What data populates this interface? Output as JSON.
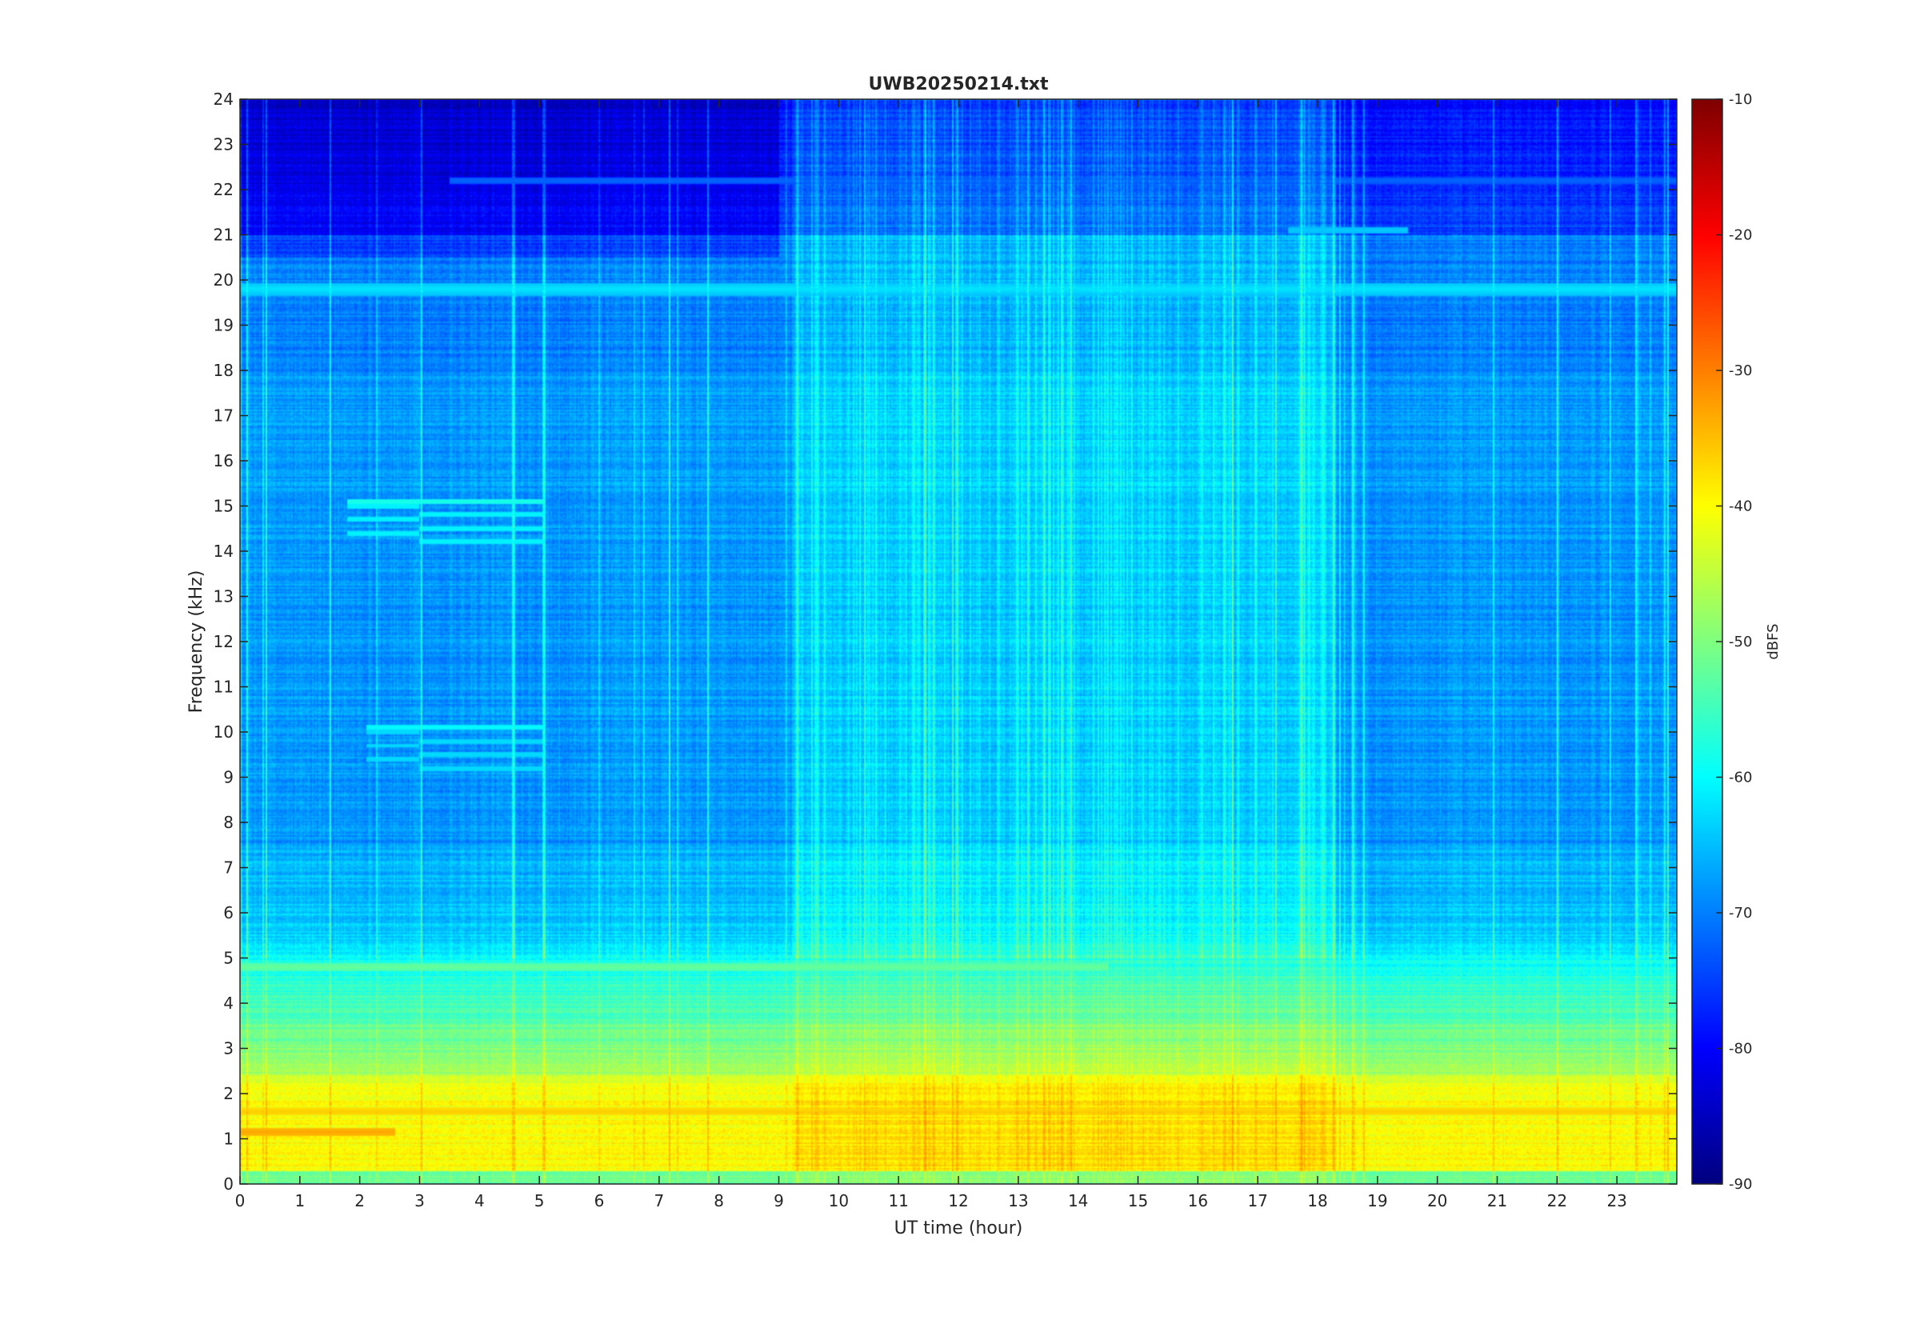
{
  "chart_data": {
    "type": "heatmap",
    "title": "UWB20250214.txt",
    "xlabel": "UT time (hour)",
    "ylabel": "Frequency (kHz)",
    "xlim": [
      0,
      24
    ],
    "ylim": [
      0,
      24
    ],
    "x_ticks": [
      "0",
      "1",
      "2",
      "3",
      "4",
      "5",
      "6",
      "7",
      "8",
      "9",
      "10",
      "11",
      "12",
      "13",
      "14",
      "15",
      "16",
      "17",
      "18",
      "19",
      "20",
      "21",
      "22",
      "23"
    ],
    "y_ticks": [
      "0",
      "1",
      "2",
      "3",
      "4",
      "5",
      "6",
      "7",
      "8",
      "9",
      "10",
      "11",
      "12",
      "13",
      "14",
      "15",
      "16",
      "17",
      "18",
      "19",
      "20",
      "21",
      "22",
      "23",
      "24"
    ],
    "colormap": "jet",
    "colorbar": {
      "label": "dBFS",
      "range": [
        -90,
        -10
      ],
      "ticks": [
        "-10",
        "-20",
        "-30",
        "-40",
        "-50",
        "-60",
        "-70",
        "-80",
        "-90"
      ]
    },
    "grid": false,
    "features": [
      {
        "name": "strong tone",
        "freq_khz": 19.8,
        "t_start": 0,
        "t_end": 24,
        "level_dbfs": -62
      },
      {
        "name": "tone",
        "freq_khz": 18.2,
        "t_start": 0,
        "t_end": 24,
        "level_dbfs": -70
      },
      {
        "name": "tone",
        "freq_khz": 22.2,
        "t_start": 3.5,
        "t_end": 24,
        "level_dbfs": -72
      },
      {
        "name": "tone",
        "freq_khz": 21.1,
        "t_start": 17.5,
        "t_end": 19.5,
        "level_dbfs": -64
      },
      {
        "name": "drifting tones",
        "freq_khz": 15.1,
        "t_start": 1.8,
        "t_end": 5.1,
        "level_dbfs": -58
      },
      {
        "name": "drifting tones",
        "freq_khz": 10.1,
        "t_start": 2.1,
        "t_end": 5.1,
        "level_dbfs": -60
      },
      {
        "name": "band",
        "freq_khz": 4.8,
        "t_start": 0,
        "t_end": 14.5,
        "level_dbfs": -52
      },
      {
        "name": "band",
        "freq_khz": 1.6,
        "t_start": 0,
        "t_end": 24,
        "level_dbfs": -36
      },
      {
        "name": "band",
        "freq_khz": 1.15,
        "t_start": 0,
        "t_end": 2.6,
        "level_dbfs": -33
      }
    ]
  }
}
